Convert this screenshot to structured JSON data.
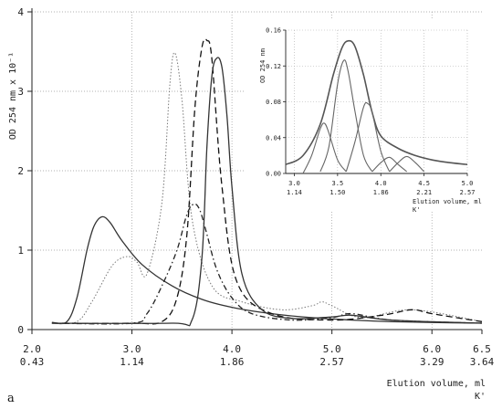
{
  "chart_data": [
    {
      "type": "line",
      "ylabel": "OD 254 nm x 10^-1",
      "xlabel": "Elution volume, ml",
      "xlabel2": "K'",
      "panel_label": "a",
      "xlim": [
        2.0,
        6.5
      ],
      "ylim": [
        0,
        4
      ],
      "grid": "dotted",
      "x_ticks": [
        "2.0",
        "3.0",
        "4.0",
        "5.0",
        "6.0",
        "6.5"
      ],
      "x_ticks_k": [
        "0.43",
        "1.14",
        "1.86",
        "2.57",
        "3.29",
        "3.64"
      ],
      "y_ticks": [
        "0",
        "1",
        "2",
        "3",
        "4"
      ],
      "series": [
        {
          "style": "solid",
          "x": [
            2.2,
            2.35,
            2.45,
            2.55,
            2.62,
            2.7,
            2.78,
            2.9,
            3.1,
            3.4,
            3.7,
            4.0,
            4.4,
            4.8,
            5.2,
            5.6,
            6.0,
            6.5
          ],
          "y": [
            0.09,
            0.1,
            0.4,
            1.0,
            1.3,
            1.42,
            1.35,
            1.12,
            0.82,
            0.55,
            0.38,
            0.28,
            0.2,
            0.15,
            0.12,
            0.1,
            0.09,
            0.08
          ]
        },
        {
          "style": "dotted",
          "x": [
            2.2,
            2.45,
            2.6,
            2.8,
            2.95,
            3.05,
            3.15,
            3.3,
            3.38,
            3.43,
            3.5,
            3.6,
            3.8,
            4.1,
            4.5,
            4.8,
            4.9,
            5.0,
            5.3,
            5.8,
            6.5
          ],
          "y": [
            0.08,
            0.1,
            0.35,
            0.8,
            0.92,
            0.85,
            0.7,
            1.6,
            3.1,
            3.48,
            2.9,
            1.4,
            0.55,
            0.35,
            0.25,
            0.3,
            0.35,
            0.3,
            0.15,
            0.25,
            0.1
          ]
        },
        {
          "style": "long-dash",
          "x": [
            2.2,
            3.0,
            3.3,
            3.45,
            3.55,
            3.63,
            3.7,
            3.75,
            3.8,
            3.9,
            4.05,
            4.4,
            5.0,
            5.5,
            5.8,
            6.0,
            6.5
          ],
          "y": [
            0.08,
            0.08,
            0.1,
            0.4,
            1.2,
            2.8,
            3.55,
            3.64,
            3.4,
            1.8,
            0.6,
            0.2,
            0.12,
            0.18,
            0.25,
            0.2,
            0.1
          ]
        },
        {
          "style": "dash-dot",
          "x": [
            2.2,
            3.0,
            3.15,
            3.3,
            3.45,
            3.55,
            3.62,
            3.68,
            3.75,
            3.85,
            4.0,
            4.2,
            4.6,
            5.0,
            5.2,
            5.6,
            6.5
          ],
          "y": [
            0.08,
            0.08,
            0.2,
            0.55,
            1.0,
            1.45,
            1.58,
            1.5,
            1.2,
            0.75,
            0.4,
            0.2,
            0.12,
            0.15,
            0.2,
            0.12,
            0.08
          ]
        },
        {
          "style": "solid",
          "x": [
            2.2,
            3.4,
            3.6,
            3.7,
            3.75,
            3.8,
            3.85,
            3.9,
            3.95,
            4.0,
            4.1,
            4.3,
            4.6,
            5.0,
            5.2,
            5.6,
            6.5
          ],
          "y": [
            0.08,
            0.08,
            0.12,
            0.9,
            2.3,
            3.2,
            3.42,
            3.3,
            2.7,
            1.8,
            0.7,
            0.25,
            0.14,
            0.16,
            0.18,
            0.12,
            0.08
          ]
        }
      ]
    },
    {
      "type": "line",
      "ylabel": "OD 254 nm",
      "xlabel": "Elution volume, ml",
      "xlabel2": "K'",
      "xlim": [
        2.9,
        5.0
      ],
      "ylim": [
        0,
        0.16
      ],
      "x_ticks": [
        "3.0",
        "3.5",
        "4.0",
        "4.5",
        "5.0"
      ],
      "x_ticks_k": [
        "1.14",
        "1.50",
        "1.86",
        "2.21",
        "2.57"
      ],
      "y_ticks": [
        "0.00",
        "0.04",
        "0.08",
        "0.12",
        "0.16"
      ],
      "series": [
        {
          "style": "solid",
          "role": "envelope",
          "x": [
            2.9,
            3.1,
            3.3,
            3.45,
            3.55,
            3.62,
            3.7,
            3.8,
            3.9,
            4.0,
            4.2,
            4.4,
            4.6,
            4.8,
            5.0
          ],
          "y": [
            0.01,
            0.02,
            0.055,
            0.11,
            0.14,
            0.148,
            0.142,
            0.11,
            0.068,
            0.042,
            0.028,
            0.02,
            0.015,
            0.012,
            0.01
          ]
        },
        {
          "style": "solid",
          "role": "component",
          "x": [
            3.1,
            3.2,
            3.3,
            3.35,
            3.4,
            3.5,
            3.6
          ],
          "y": [
            0.0,
            0.02,
            0.05,
            0.056,
            0.045,
            0.015,
            0.002
          ]
        },
        {
          "style": "solid",
          "role": "component",
          "x": [
            3.3,
            3.4,
            3.5,
            3.57,
            3.62,
            3.7,
            3.8,
            3.9
          ],
          "y": [
            0.002,
            0.03,
            0.1,
            0.126,
            0.115,
            0.07,
            0.02,
            0.002
          ]
        },
        {
          "style": "solid",
          "role": "component",
          "x": [
            3.6,
            3.7,
            3.8,
            3.85,
            3.9,
            4.0,
            4.1
          ],
          "y": [
            0.002,
            0.035,
            0.074,
            0.078,
            0.068,
            0.025,
            0.002
          ]
        },
        {
          "style": "solid",
          "role": "component",
          "x": [
            3.9,
            4.0,
            4.1,
            4.2,
            4.3
          ],
          "y": [
            0.002,
            0.012,
            0.018,
            0.01,
            0.002
          ]
        },
        {
          "style": "solid",
          "role": "component",
          "x": [
            4.1,
            4.2,
            4.3,
            4.4,
            4.5
          ],
          "y": [
            0.002,
            0.012,
            0.019,
            0.012,
            0.002
          ]
        }
      ]
    }
  ]
}
